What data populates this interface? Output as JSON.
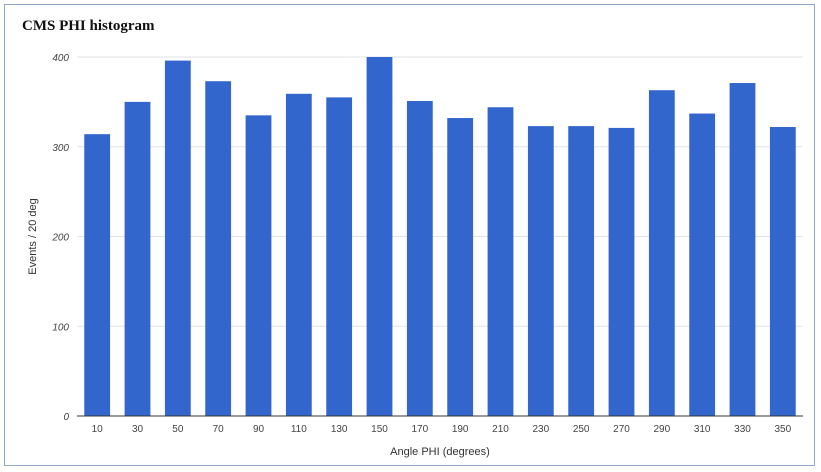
{
  "chart_data": {
    "type": "bar",
    "title": "CMS PHI histogram",
    "xlabel": "Angle PHI (degrees)",
    "ylabel": "Events / 20 deg",
    "categories": [
      "10",
      "30",
      "50",
      "70",
      "90",
      "110",
      "130",
      "150",
      "170",
      "190",
      "210",
      "230",
      "250",
      "270",
      "290",
      "310",
      "330",
      "350"
    ],
    "values": [
      314,
      350,
      396,
      373,
      335,
      359,
      355,
      400,
      351,
      332,
      344,
      323,
      323,
      321,
      363,
      337,
      371,
      322
    ],
    "ylim": [
      0,
      400
    ],
    "yticks": [
      0,
      100,
      200,
      300,
      400
    ],
    "grid": true,
    "bar_color": "#3366cc",
    "gridline_color": "#e2e2e2",
    "baseline_color": "#333333"
  }
}
